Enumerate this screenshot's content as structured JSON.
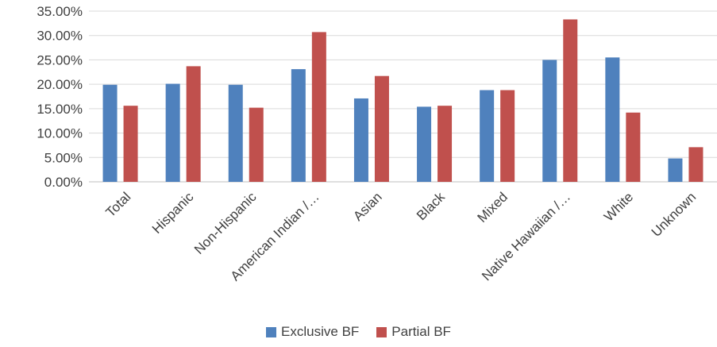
{
  "chart_data": {
    "type": "bar",
    "categories": [
      "Total",
      "Hispanic",
      "Non-Hispanic",
      "American Indian /…",
      "Asian",
      "Black",
      "Mixed",
      "Native Hawaiian /…",
      "White",
      "Unknown"
    ],
    "series": [
      {
        "name": "Exclusive BF",
        "color": "#4F81BD",
        "values": [
          19.9,
          20.1,
          19.9,
          23.1,
          17.1,
          15.4,
          18.8,
          25.0,
          25.5,
          4.8
        ]
      },
      {
        "name": "Partial BF",
        "color": "#C0504D",
        "values": [
          15.6,
          23.7,
          15.2,
          30.7,
          21.7,
          15.6,
          18.8,
          33.3,
          14.2,
          7.1
        ]
      }
    ],
    "y_ticks": [
      "0.00%",
      "5.00%",
      "10.00%",
      "15.00%",
      "20.00%",
      "25.00%",
      "30.00%",
      "35.00%"
    ],
    "ylim": [
      0,
      35
    ],
    "grid": true,
    "legend_position": "bottom",
    "title": "",
    "xlabel": "",
    "ylabel": ""
  }
}
